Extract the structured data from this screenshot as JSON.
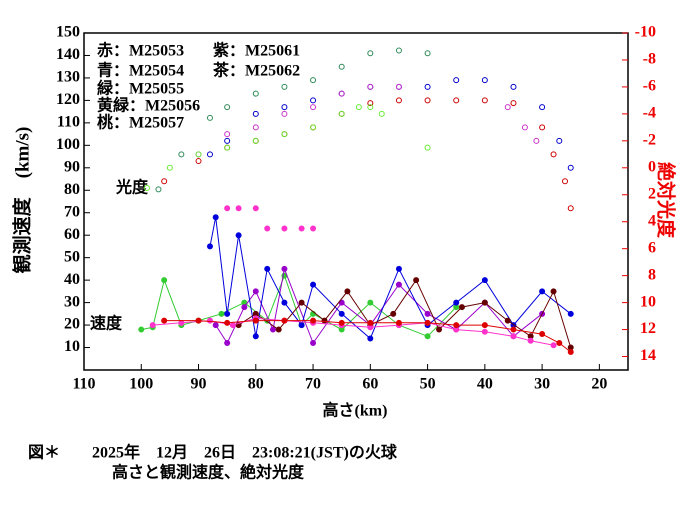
{
  "chart_data": {
    "type": "scatter",
    "y_label": "観測速度　(km/s)",
    "y2_label": "絶対光度",
    "x_label": "高さ(km)",
    "annotations": [
      "光度",
      "速度"
    ],
    "legend": [
      "赤：M25053",
      "紫：M25061",
      "青：M25054",
      "茶：M25062",
      "緑：M25055",
      "黄緑：M25056",
      "桃：M25057"
    ],
    "caption": [
      "図＊　　2025年　12月　26日　23:08:21(JST)の火球",
      "高さと観測速度、絶対光度"
    ],
    "xlim": [
      110,
      15
    ],
    "ylim": [
      0,
      150
    ],
    "y2lim": [
      15,
      -10
    ],
    "xticks": [
      110,
      100,
      90,
      80,
      70,
      60,
      50,
      40,
      30,
      20
    ],
    "yticks": [
      10,
      20,
      30,
      40,
      50,
      60,
      70,
      80,
      90,
      100,
      110,
      120,
      130,
      140,
      150
    ],
    "y2ticks": [
      -10,
      -8,
      -6,
      -4,
      -2,
      0,
      2,
      4,
      6,
      8,
      10,
      12,
      14
    ],
    "y2_color": "#ee0000",
    "series": [
      {
        "color": "#2e8b57",
        "axis": "y2",
        "marker": "open",
        "x": [
          97,
          93,
          88,
          85,
          80,
          75,
          70,
          65,
          60,
          55,
          50
        ],
        "values": [
          1.6,
          -1,
          -3.7,
          -4.5,
          -5.5,
          -6,
          -6.5,
          -7.5,
          -8.5,
          -8.7,
          -8.5
        ]
      },
      {
        "color": "#0000cc",
        "axis": "y2",
        "marker": "open",
        "x": [
          88,
          85,
          80,
          75,
          70,
          65,
          60,
          55,
          50,
          45,
          40,
          35,
          30,
          27,
          25
        ],
        "values": [
          -1,
          -2,
          -4,
          -4.5,
          -5,
          -5.5,
          -6,
          -6,
          -6,
          -6.5,
          -6.5,
          -6,
          -4.5,
          -2,
          0
        ]
      },
      {
        "color": "#cc33cc",
        "axis": "y2",
        "marker": "open",
        "x": [
          90,
          85,
          80,
          75,
          70,
          65,
          60,
          55,
          36,
          33,
          31
        ],
        "values": [
          -1,
          -2.5,
          -3,
          -4,
          -4.5,
          -5.5,
          -6,
          -6,
          -4.5,
          -3,
          -2
        ]
      },
      {
        "color": "#cc0000",
        "axis": "y2",
        "marker": "open",
        "x": [
          96,
          90,
          85,
          80,
          75,
          70,
          65,
          60,
          55,
          50,
          45,
          40,
          35,
          30,
          28,
          26,
          25
        ],
        "values": [
          1,
          -0.5,
          -1.5,
          -2,
          -2.5,
          -3,
          -4,
          -4.8,
          -5,
          -5,
          -5,
          -5,
          -4.8,
          -3,
          -1,
          1,
          3
        ]
      },
      {
        "color": "#66ee33",
        "axis": "y2",
        "marker": "open",
        "x": [
          99,
          95,
          90,
          85,
          80,
          75,
          70,
          65,
          62,
          60,
          58,
          50
        ],
        "values": [
          1.5,
          0,
          -1,
          -1.5,
          -2,
          -2.5,
          -3,
          -4,
          -4.5,
          -4.5,
          -4,
          -1.5
        ]
      },
      {
        "color": "#ff33cc",
        "axis": "y2",
        "marker": "dot",
        "x": [
          85,
          83,
          80,
          78,
          75,
          72,
          70
        ],
        "values": [
          3,
          3,
          3,
          4.5,
          4.5,
          4.5,
          4.5
        ]
      },
      {
        "color": "#33cc33",
        "axis": "y",
        "marker": "dot",
        "line": true,
        "x": [
          100,
          98,
          96,
          93,
          90,
          86,
          82,
          78,
          75,
          72,
          70,
          65,
          60,
          55,
          50,
          45
        ],
        "values": [
          18,
          19,
          40,
          20,
          22,
          25,
          30,
          22,
          42,
          20,
          25,
          18,
          30,
          20,
          15,
          28
        ]
      },
      {
        "color": "#9900cc",
        "axis": "y",
        "marker": "dot",
        "line": true,
        "x": [
          87,
          85,
          82,
          80,
          77,
          75,
          70,
          65,
          60,
          55,
          50,
          45,
          40,
          35,
          30
        ],
        "values": [
          20,
          12,
          28,
          35,
          18,
          45,
          12,
          30,
          20,
          38,
          25,
          18,
          30,
          15,
          25
        ]
      },
      {
        "color": "#0000dd",
        "axis": "y",
        "marker": "dot",
        "line": true,
        "x": [
          88,
          87,
          85,
          83,
          80,
          78,
          75,
          72,
          70,
          65,
          60,
          55,
          50,
          45,
          40,
          35,
          30,
          25
        ],
        "values": [
          55,
          68,
          25,
          60,
          15,
          45,
          30,
          20,
          38,
          25,
          14,
          45,
          20,
          30,
          40,
          20,
          35,
          25
        ]
      },
      {
        "color": "#660000",
        "axis": "y",
        "marker": "dot",
        "line": true,
        "x": [
          83,
          80,
          76,
          72,
          68,
          64,
          60,
          56,
          52,
          48,
          44,
          40,
          36,
          32,
          28,
          25
        ],
        "values": [
          20,
          25,
          18,
          30,
          22,
          35,
          20,
          25,
          40,
          18,
          28,
          30,
          22,
          15,
          35,
          10
        ]
      },
      {
        "color": "#ff33cc",
        "axis": "y",
        "marker": "dot",
        "line": true,
        "x": [
          98,
          93,
          88,
          84,
          80,
          75,
          70,
          65,
          60,
          55,
          50,
          45,
          40,
          35,
          32,
          28
        ],
        "values": [
          20,
          21,
          22,
          20,
          23,
          22,
          21,
          20,
          19,
          20,
          21,
          18,
          17,
          15,
          13,
          11
        ]
      },
      {
        "color": "#dd0000",
        "axis": "y",
        "marker": "dot",
        "line": true,
        "x": [
          96,
          90,
          85,
          80,
          75,
          70,
          65,
          60,
          55,
          50,
          45,
          40,
          35,
          30,
          27,
          25
        ],
        "values": [
          22,
          22,
          21,
          22,
          22,
          22,
          21,
          21,
          21,
          21,
          20,
          20,
          18,
          16,
          12,
          8
        ]
      }
    ]
  }
}
